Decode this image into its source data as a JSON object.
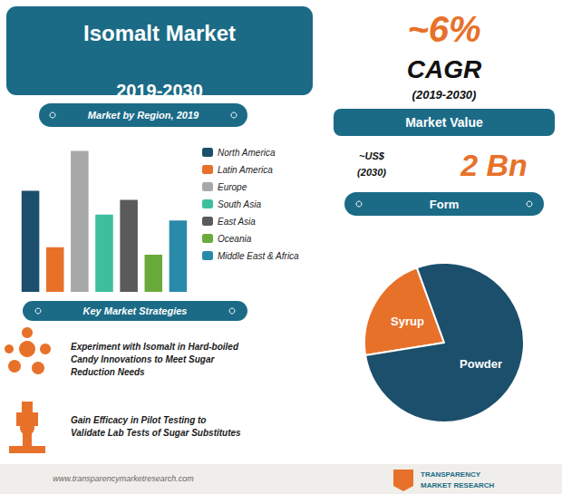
{
  "chart_data": [
    {
      "type": "bar",
      "title": "Isomalt Market\n2019-2030",
      "subtitle": "Market by Region, 2019",
      "categories": [
        "North America",
        "Latin America",
        "Europe",
        "South Asia",
        "East Asia",
        "Oceania",
        "Middle East & Africa"
      ],
      "values": [
        0.68,
        0.3,
        0.95,
        0.52,
        0.62,
        0.25,
        0.48
      ],
      "colors": [
        "#1b4f6b",
        "#e8712a",
        "#a8a8a8",
        "#3dbf9e",
        "#5a5a5a",
        "#6aaa3a",
        "#2a8aaa"
      ],
      "ylim": [
        0,
        1.05
      ],
      "tick_labels": false,
      "grid": false,
      "legend": "right",
      "annotations": [
        "Key Market Strategies",
        "Experiment with Isomalt in Hard-boiled\nCandy Innovations to Meet Sugar\nReduction Needs",
        "Gain Efficacy in Pilot Testing to\nValidate Lab Tests of Sugar Substitutes",
        "www.transparencymarketresearch.com"
      ]
    },
    {
      "type": "pie",
      "title": "Form",
      "categories": [
        "Syrup",
        "Powder"
      ],
      "values": [
        22,
        78
      ],
      "colors": [
        "#e8712a",
        "#1b4f6b"
      ],
      "annotations": [
        "~6%",
        "CAGR",
        "(2019-2030)",
        "Market Value",
        "~US$",
        "(2030)",
        "2 Bn",
        "TRANSPARENCY",
        "MARKET RESEARCH"
      ]
    }
  ]
}
